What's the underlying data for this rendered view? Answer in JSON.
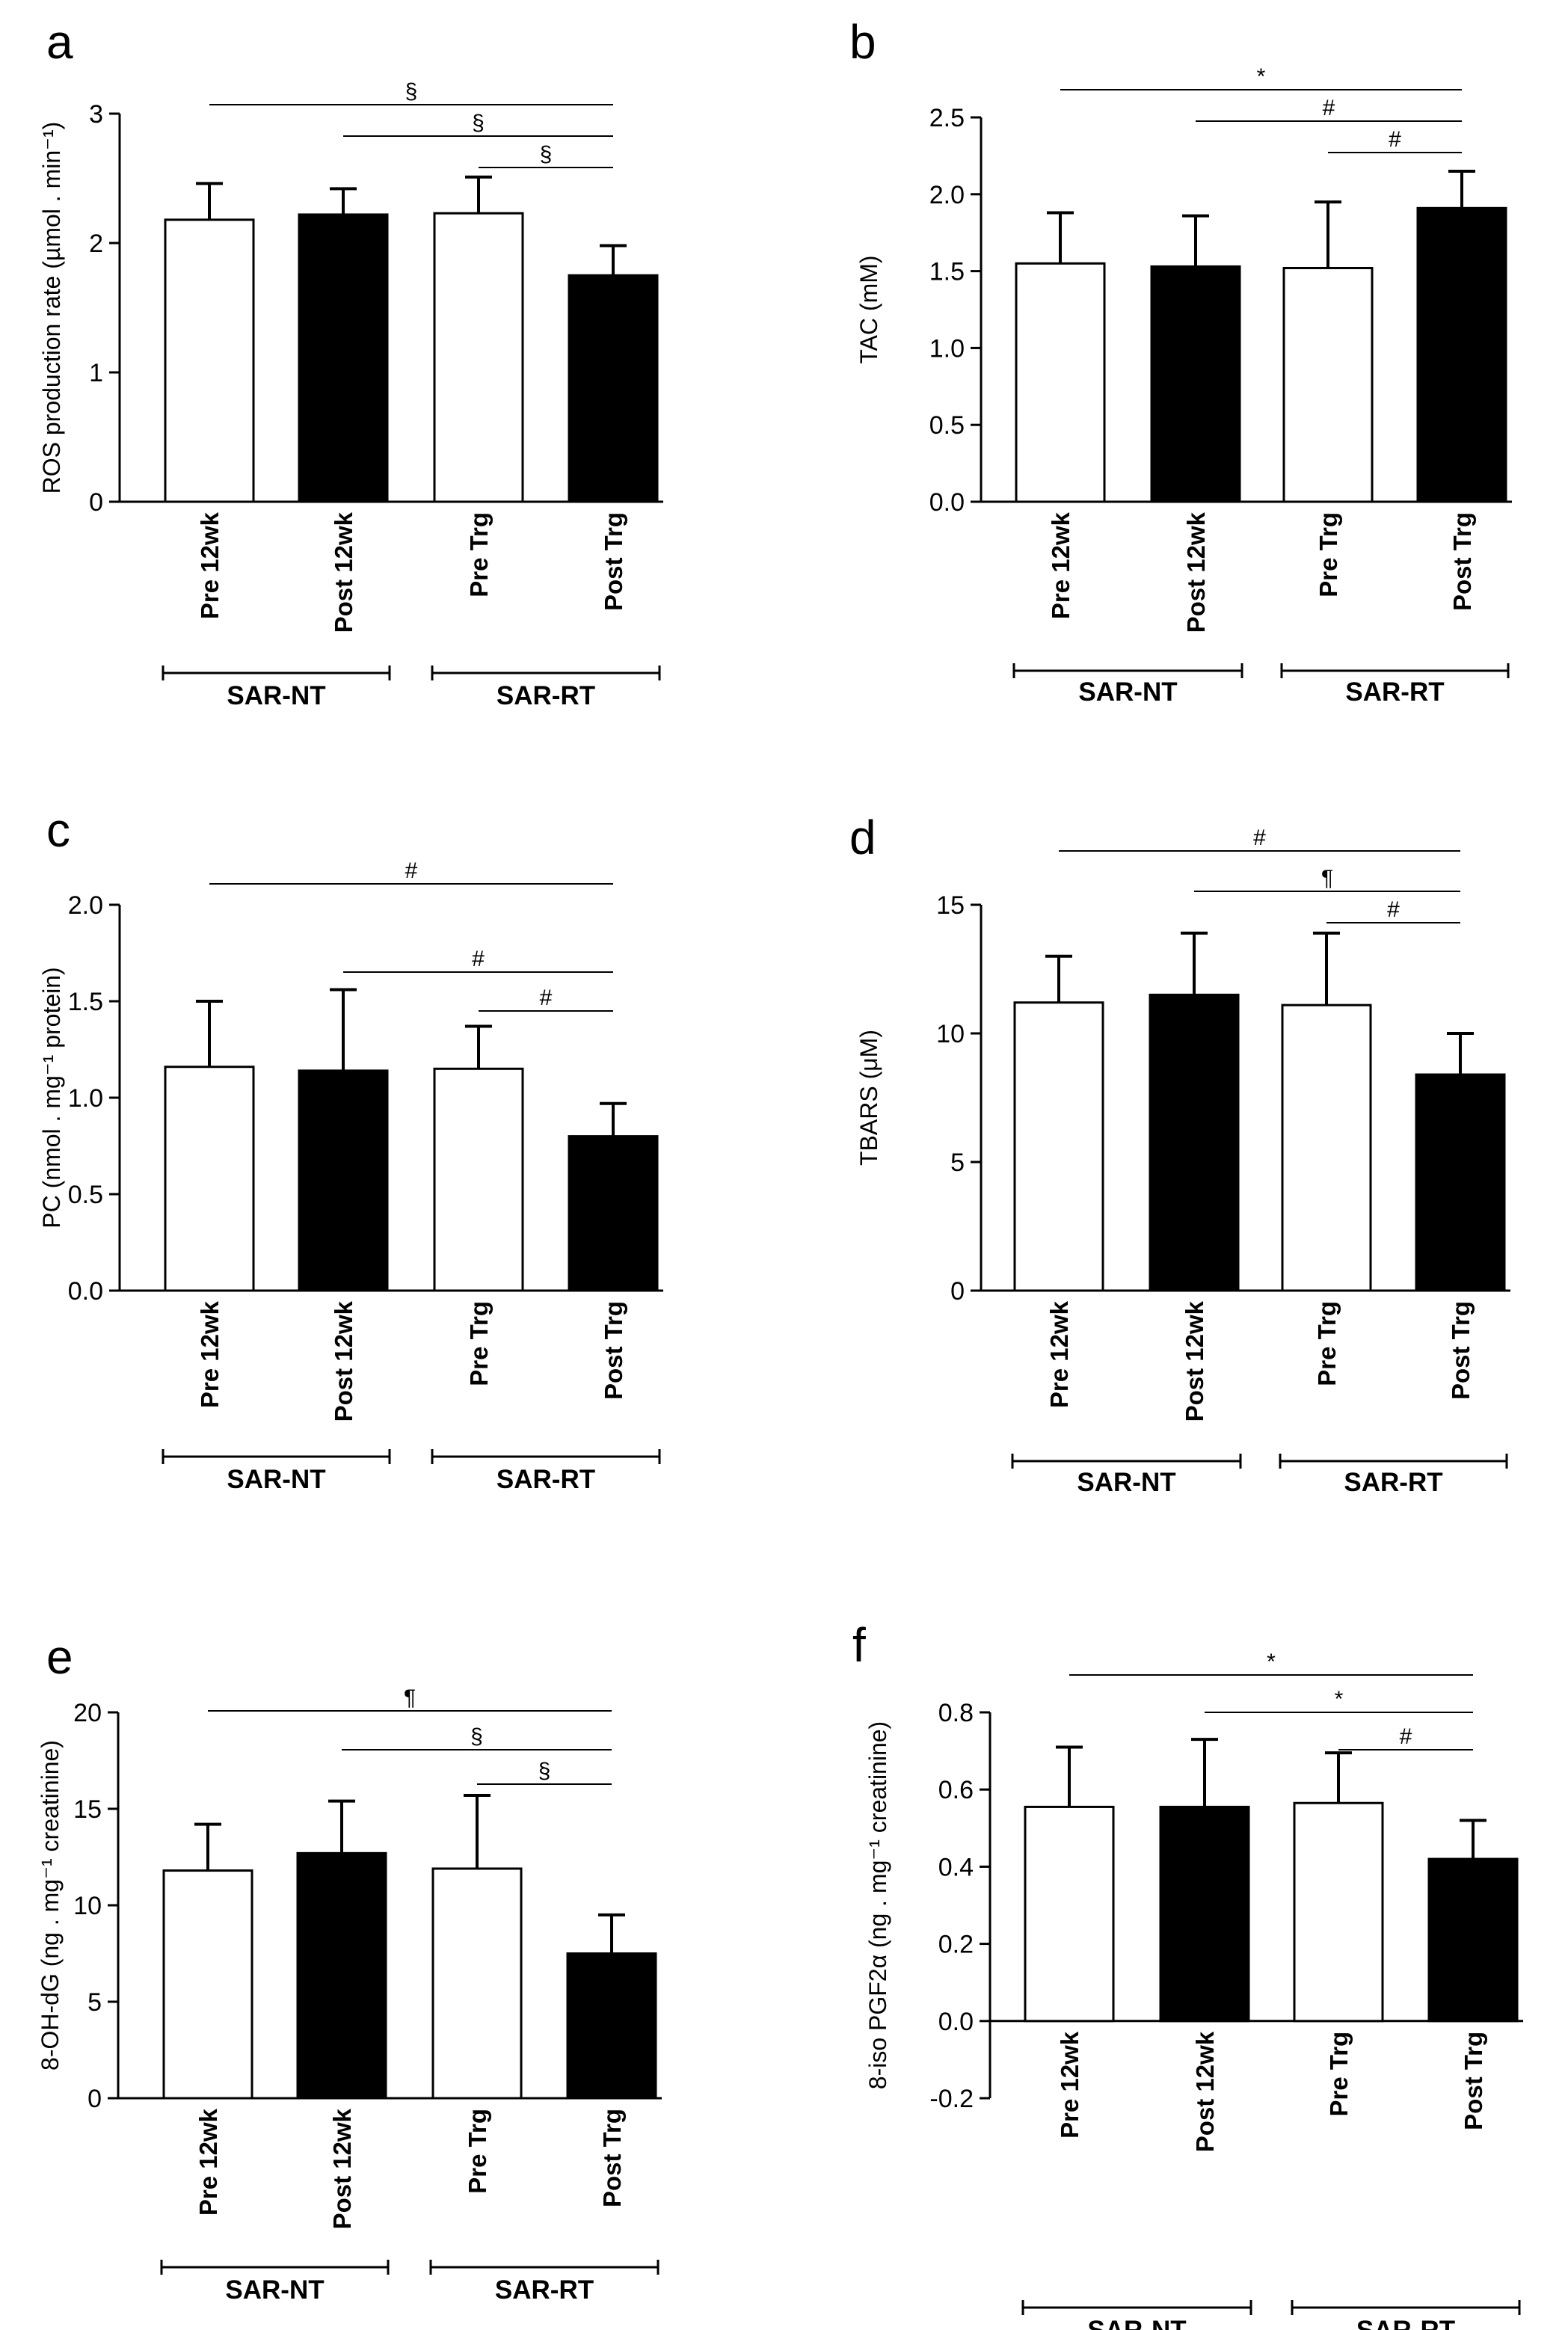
{
  "chart_data": [
    {
      "type": "bar",
      "panel": "a",
      "ylabel": "ROS production rate (µmol . min⁻¹)",
      "ylim": [
        0,
        3
      ],
      "yticks": [
        "0",
        "1",
        "2",
        "3"
      ],
      "categories": [
        "Pre 12wk",
        "Post 12wk",
        "Pre Trg",
        "Post Trg"
      ],
      "fills": [
        "#ffffff",
        "#000000",
        "#ffffff",
        "#000000"
      ],
      "values": [
        2.18,
        2.22,
        2.23,
        1.75
      ],
      "errors": [
        0.28,
        0.2,
        0.28,
        0.23
      ],
      "groups": [
        {
          "label": "SAR-NT",
          "from": 0,
          "to": 1
        },
        {
          "label": "SAR-RT",
          "from": 2,
          "to": 3
        }
      ],
      "significance": [
        {
          "from": 0,
          "to": 3,
          "symbol": "§"
        },
        {
          "from": 1,
          "to": 3,
          "symbol": "§"
        },
        {
          "from": 2,
          "to": 3,
          "symbol": "§"
        }
      ]
    },
    {
      "type": "bar",
      "panel": "b",
      "ylabel": "TAC (mM)",
      "ylim": [
        0,
        2.5
      ],
      "yticks": [
        "0.0",
        "0.5",
        "1.0",
        "1.5",
        "2.0",
        "2.5"
      ],
      "categories": [
        "Pre 12wk",
        "Post 12wk",
        "Pre Trg",
        "Post Trg"
      ],
      "fills": [
        "#ffffff",
        "#000000",
        "#ffffff",
        "#000000"
      ],
      "values": [
        1.55,
        1.53,
        1.52,
        1.91
      ],
      "errors": [
        0.33,
        0.33,
        0.43,
        0.24
      ],
      "groups": [
        {
          "label": "SAR-NT",
          "from": 0,
          "to": 1
        },
        {
          "label": "SAR-RT",
          "from": 2,
          "to": 3
        }
      ],
      "significance": [
        {
          "from": 0,
          "to": 3,
          "symbol": "*"
        },
        {
          "from": 1,
          "to": 3,
          "symbol": "#"
        },
        {
          "from": 2,
          "to": 3,
          "symbol": "#"
        }
      ]
    },
    {
      "type": "bar",
      "panel": "c",
      "ylabel": "PC (nmol . mg⁻¹ protein)",
      "ylim": [
        0,
        2
      ],
      "yticks": [
        "0.0",
        "0.5",
        "1.0",
        "1.5",
        "2.0"
      ],
      "categories": [
        "Pre 12wk",
        "Post 12wk",
        "Pre Trg",
        "Post Trg"
      ],
      "fills": [
        "#ffffff",
        "#000000",
        "#ffffff",
        "#000000"
      ],
      "values": [
        1.16,
        1.14,
        1.15,
        0.8
      ],
      "errors": [
        0.34,
        0.42,
        0.22,
        0.17
      ],
      "groups": [
        {
          "label": "SAR-NT",
          "from": 0,
          "to": 1
        },
        {
          "label": "SAR-RT",
          "from": 2,
          "to": 3
        }
      ],
      "significance": [
        {
          "from": 0,
          "to": 3,
          "symbol": "#"
        },
        {
          "from": 1,
          "to": 3,
          "symbol": "#"
        },
        {
          "from": 2,
          "to": 3,
          "symbol": "#"
        }
      ]
    },
    {
      "type": "bar",
      "panel": "d",
      "ylabel": "TBARS (μM)",
      "ylim": [
        0,
        15
      ],
      "yticks": [
        "0",
        "5",
        "10",
        "15"
      ],
      "categories": [
        "Pre 12wk",
        "Post 12wk",
        "Pre Trg",
        "Post Trg"
      ],
      "fills": [
        "#ffffff",
        "#000000",
        "#ffffff",
        "#000000"
      ],
      "values": [
        11.2,
        11.5,
        11.1,
        8.4
      ],
      "errors": [
        1.8,
        2.4,
        2.8,
        1.6
      ],
      "groups": [
        {
          "label": "SAR-NT",
          "from": 0,
          "to": 1
        },
        {
          "label": "SAR-RT",
          "from": 2,
          "to": 3
        }
      ],
      "significance": [
        {
          "from": 0,
          "to": 3,
          "symbol": "#"
        },
        {
          "from": 1,
          "to": 3,
          "symbol": "¶"
        },
        {
          "from": 2,
          "to": 3,
          "symbol": "#"
        }
      ]
    },
    {
      "type": "bar",
      "panel": "e",
      "ylabel": "8-OH-dG (ng . mg⁻¹ creatinine)",
      "ylim": [
        0,
        20
      ],
      "yticks": [
        "0",
        "5",
        "10",
        "15",
        "20"
      ],
      "categories": [
        "Pre 12wk",
        "Post 12wk",
        "Pre Trg",
        "Post Trg"
      ],
      "fills": [
        "#ffffff",
        "#000000",
        "#ffffff",
        "#000000"
      ],
      "values": [
        11.8,
        12.7,
        11.9,
        7.5
      ],
      "errors": [
        2.4,
        2.7,
        3.8,
        2.0
      ],
      "groups": [
        {
          "label": "SAR-NT",
          "from": 0,
          "to": 1
        },
        {
          "label": "SAR-RT",
          "from": 2,
          "to": 3
        }
      ],
      "significance": [
        {
          "from": 0,
          "to": 3,
          "symbol": "¶"
        },
        {
          "from": 1,
          "to": 3,
          "symbol": "§"
        },
        {
          "from": 2,
          "to": 3,
          "symbol": "§"
        }
      ]
    },
    {
      "type": "bar",
      "panel": "f",
      "ylabel": "8-iso PGF2α (ng . mg⁻¹ creatinine)",
      "ylim": [
        -0.2,
        0.8
      ],
      "yticks": [
        "-0.2",
        "0.0",
        "0.2",
        "0.4",
        "0.6",
        "0.8"
      ],
      "categories": [
        "Pre 12wk",
        "Post 12wk",
        "Pre Trg",
        "Post Trg"
      ],
      "fills": [
        "#ffffff",
        "#000000",
        "#ffffff",
        "#000000"
      ],
      "values": [
        0.555,
        0.555,
        0.565,
        0.42
      ],
      "errors": [
        0.155,
        0.175,
        0.13,
        0.1
      ],
      "groups": [
        {
          "label": "SAR-NT",
          "from": 0,
          "to": 1
        },
        {
          "label": "SAR-RT",
          "from": 2,
          "to": 3
        }
      ],
      "significance": [
        {
          "from": 0,
          "to": 3,
          "symbol": "*"
        },
        {
          "from": 1,
          "to": 3,
          "symbol": "*"
        },
        {
          "from": 2,
          "to": 3,
          "symbol": "#"
        }
      ]
    }
  ]
}
